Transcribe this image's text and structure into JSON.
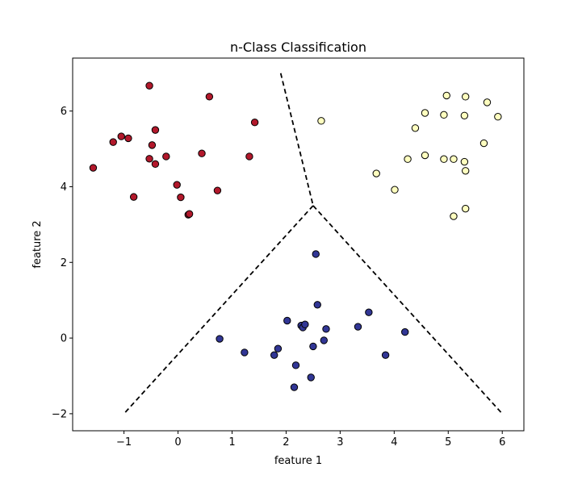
{
  "chart_data": {
    "type": "scatter",
    "title": "n-Class Classification",
    "xlabel": "feature 1",
    "ylabel": "feature 2",
    "xlim": [
      -1.95,
      6.4
    ],
    "ylim": [
      -2.45,
      7.4
    ],
    "xticks": [
      -1,
      0,
      1,
      2,
      3,
      4,
      5,
      6
    ],
    "yticks": [
      -2,
      0,
      2,
      4,
      6
    ],
    "tick_labels_x": [
      "−1",
      "0",
      "1",
      "2",
      "3",
      "4",
      "5",
      "6"
    ],
    "tick_labels_y": [
      "−2",
      "0",
      "2",
      "4",
      "6"
    ],
    "grid": false,
    "legend": "none",
    "series": [
      {
        "color": "#b2182b",
        "points": [
          [
            -1.57,
            4.5
          ],
          [
            -1.2,
            5.18
          ],
          [
            -1.05,
            5.33
          ],
          [
            -0.92,
            5.28
          ],
          [
            -0.53,
            6.67
          ],
          [
            -0.48,
            5.1
          ],
          [
            -0.42,
            5.5
          ],
          [
            -0.53,
            4.74
          ],
          [
            -0.42,
            4.6
          ],
          [
            -0.82,
            3.73
          ],
          [
            -0.22,
            4.8
          ],
          [
            -0.02,
            4.05
          ],
          [
            0.05,
            3.72
          ],
          [
            0.19,
            3.26
          ],
          [
            0.21,
            3.28
          ],
          [
            0.44,
            4.88
          ],
          [
            0.58,
            6.38
          ],
          [
            0.73,
            3.9
          ],
          [
            1.32,
            4.8
          ],
          [
            1.42,
            5.7
          ]
        ]
      },
      {
        "color": "#ffffbf",
        "points": [
          [
            2.65,
            5.74
          ],
          [
            3.67,
            4.35
          ],
          [
            4.01,
            3.92
          ],
          [
            4.25,
            4.73
          ],
          [
            4.39,
            5.55
          ],
          [
            4.57,
            5.95
          ],
          [
            4.57,
            4.83
          ],
          [
            4.92,
            4.73
          ],
          [
            4.92,
            5.9
          ],
          [
            4.97,
            6.41
          ],
          [
            5.1,
            4.73
          ],
          [
            5.1,
            3.22
          ],
          [
            5.3,
            4.66
          ],
          [
            5.3,
            5.88
          ],
          [
            5.32,
            6.38
          ],
          [
            5.32,
            4.42
          ],
          [
            5.32,
            3.42
          ],
          [
            5.66,
            5.15
          ],
          [
            5.72,
            6.23
          ],
          [
            5.92,
            5.85
          ]
        ]
      },
      {
        "color": "#313695",
        "points": [
          [
            0.77,
            -0.02
          ],
          [
            1.23,
            -0.38
          ],
          [
            1.78,
            -0.45
          ],
          [
            1.85,
            -0.28
          ],
          [
            2.02,
            0.46
          ],
          [
            2.18,
            -0.72
          ],
          [
            2.15,
            -1.3
          ],
          [
            2.28,
            0.33
          ],
          [
            2.31,
            0.28
          ],
          [
            2.35,
            0.36
          ],
          [
            2.46,
            -1.04
          ],
          [
            2.5,
            -0.22
          ],
          [
            2.55,
            2.22
          ],
          [
            2.58,
            0.88
          ],
          [
            2.7,
            -0.06
          ],
          [
            2.74,
            0.24
          ],
          [
            3.33,
            0.3
          ],
          [
            3.53,
            0.68
          ],
          [
            3.84,
            -0.45
          ],
          [
            4.2,
            0.16
          ]
        ]
      }
    ],
    "boundaries": [
      [
        [
          1.9,
          7.0
        ],
        [
          2.5,
          3.5
        ]
      ],
      [
        [
          2.5,
          3.5
        ],
        [
          -1.0,
          -2.0
        ]
      ],
      [
        [
          2.5,
          3.5
        ],
        [
          6.0,
          -2.0
        ]
      ]
    ],
    "boundary_style": "dashed",
    "marker_edge_color": "#000000"
  }
}
